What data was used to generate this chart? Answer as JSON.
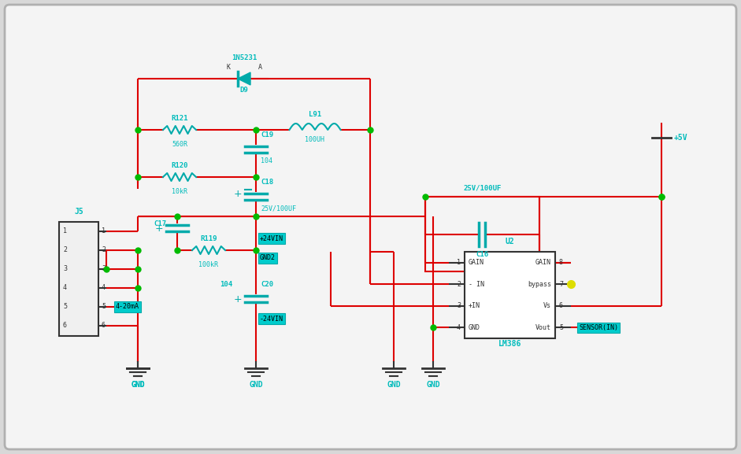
{
  "bg_color": "#d8d8d8",
  "panel_color": "#f8f8f8",
  "wire_red": "#dd0000",
  "wire_black": "#333333",
  "comp_color": "#00aaaa",
  "label_color": "#00bbbb",
  "yellow": "#dddd00",
  "green_dot": "#00bb00",
  "figsize": [
    9.41,
    5.77
  ],
  "dpi": 100,
  "xlim": [
    0,
    941
  ],
  "ylim": [
    0,
    577
  ]
}
